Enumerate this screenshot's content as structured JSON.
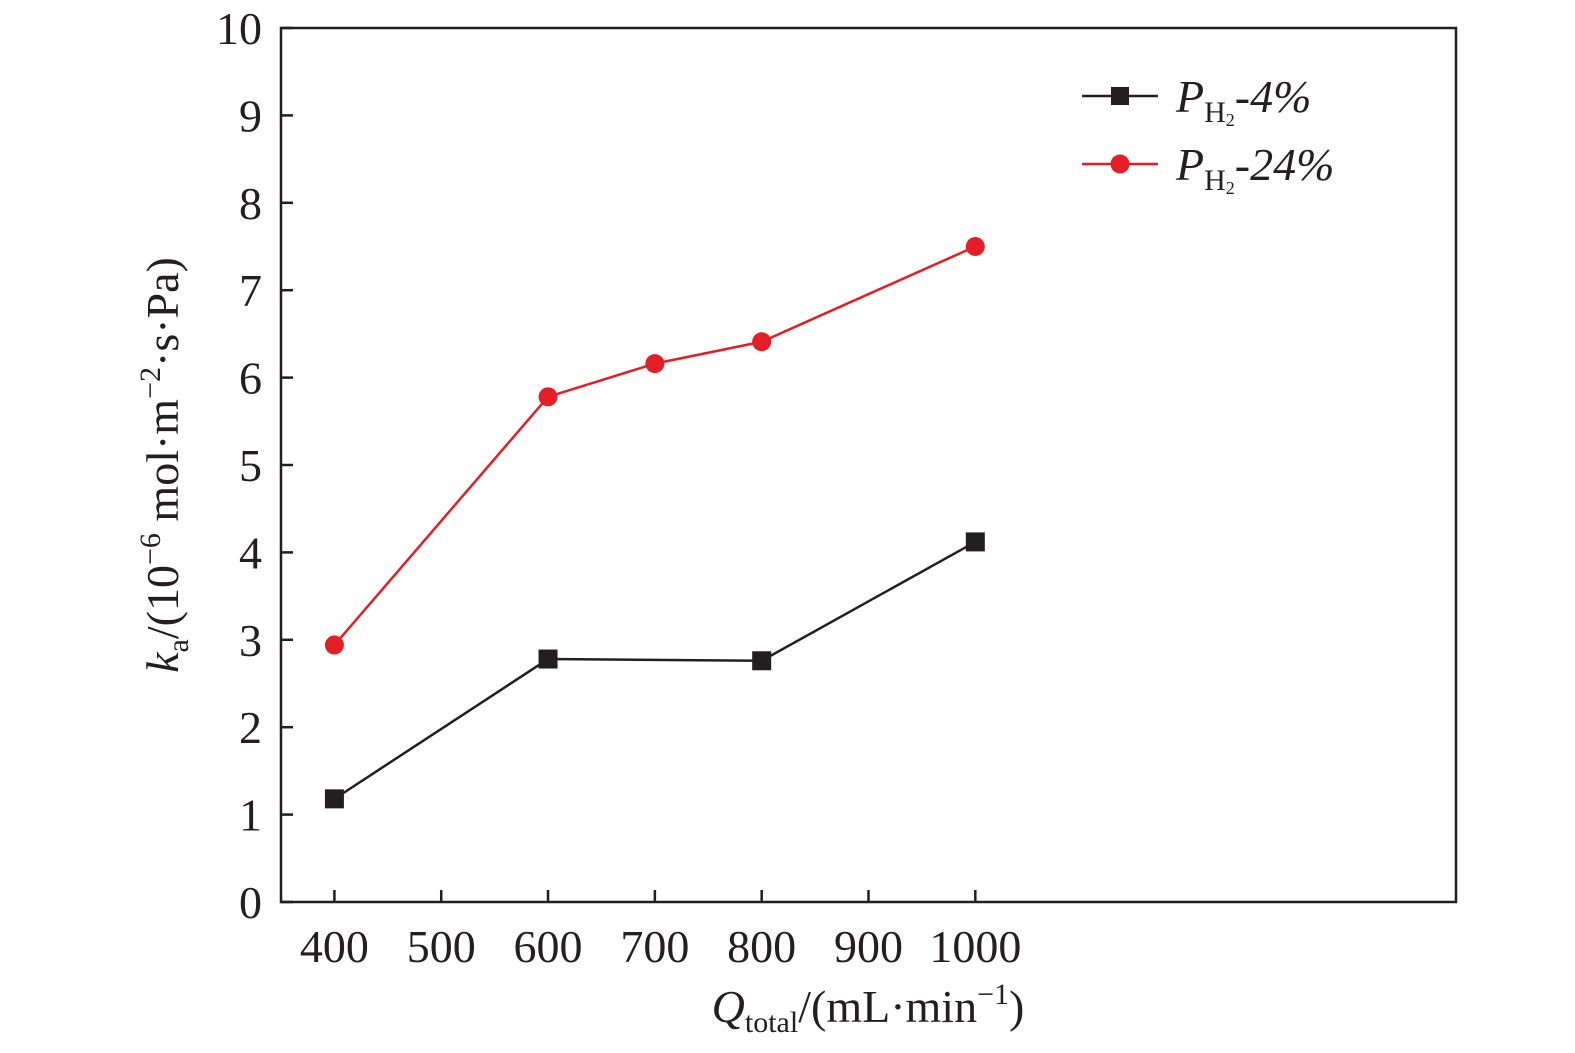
{
  "chart_data": {
    "type": "line",
    "xlabel": {
      "main": "Q",
      "sub": "total",
      "unit_pre": "/(mL·min",
      "unit_sup": "−1",
      "unit_post": ")"
    },
    "ylabel": {
      "main": "k",
      "sub": "a",
      "unit_pre": "/(10",
      "unit_sup1": "−6",
      "unit_mid": " mol·m",
      "unit_sup2": "−2",
      "unit_post": "·s·Pa)"
    },
    "xlim": [
      350,
      1450
    ],
    "ylim": [
      0,
      10
    ],
    "xticks": [
      "400",
      "500",
      "600",
      "700",
      "800",
      "900",
      "1000"
    ],
    "yticks": [
      "0",
      "1",
      "2",
      "3",
      "4",
      "5",
      "6",
      "7",
      "8",
      "9",
      "10"
    ],
    "legend_position": "top-right",
    "series": [
      {
        "name_main": "P",
        "name_sub": "H",
        "name_subsub": "2",
        "name_suffix": "-4%",
        "marker": "square",
        "color": "#231f20",
        "x": [
          400,
          600,
          800,
          1000
        ],
        "y": [
          1.18,
          2.78,
          2.76,
          4.12
        ]
      },
      {
        "name_main": "P",
        "name_sub": "H",
        "name_subsub": "2",
        "name_suffix": "-24%",
        "marker": "circle",
        "color": "#e31e25",
        "x": [
          400,
          600,
          700,
          800,
          1000
        ],
        "y": [
          2.94,
          5.78,
          6.16,
          6.41,
          7.5
        ]
      }
    ]
  }
}
